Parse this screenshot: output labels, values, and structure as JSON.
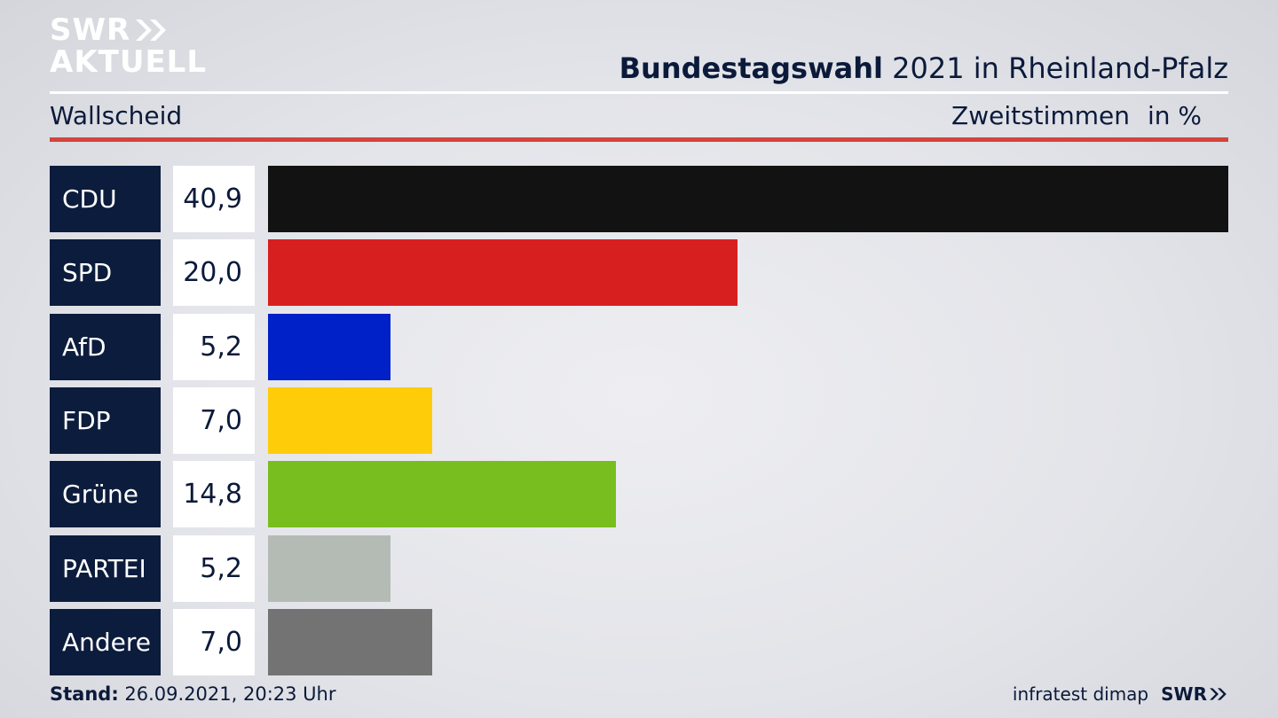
{
  "header": {
    "logo_line1": "SWR",
    "logo_line2": "AKTUELL",
    "title_bold": "Bundestagswahl",
    "title_rest": " 2021 in Rheinland-Pfalz",
    "location": "Wallscheid",
    "vote_type": "Zweitstimmen",
    "unit": "in %"
  },
  "colors": {
    "label_bg": "#0c1c3c",
    "accent_red": "#d2453c"
  },
  "chart_data": {
    "type": "bar",
    "orientation": "horizontal",
    "categories": [
      "CDU",
      "SPD",
      "AfD",
      "FDP",
      "Grüne",
      "PARTEI",
      "Andere"
    ],
    "values": [
      40.9,
      20.0,
      5.2,
      7.0,
      14.8,
      5.2,
      7.0
    ],
    "value_labels": [
      "40,9",
      "20,0",
      "5,2",
      "7,0",
      "14,8",
      "5,2",
      "7,0"
    ],
    "colors": [
      "#121212",
      "#d81f20",
      "#0020c8",
      "#ffcc0a",
      "#78be1e",
      "#b4bbb5",
      "#737373"
    ],
    "xlim": [
      0,
      40.9
    ]
  },
  "footer": {
    "stand_label": "Stand:",
    "stand_value": " 26.09.2021, 20:23 Uhr",
    "source": "infratest dimap",
    "brand": "SWR"
  }
}
